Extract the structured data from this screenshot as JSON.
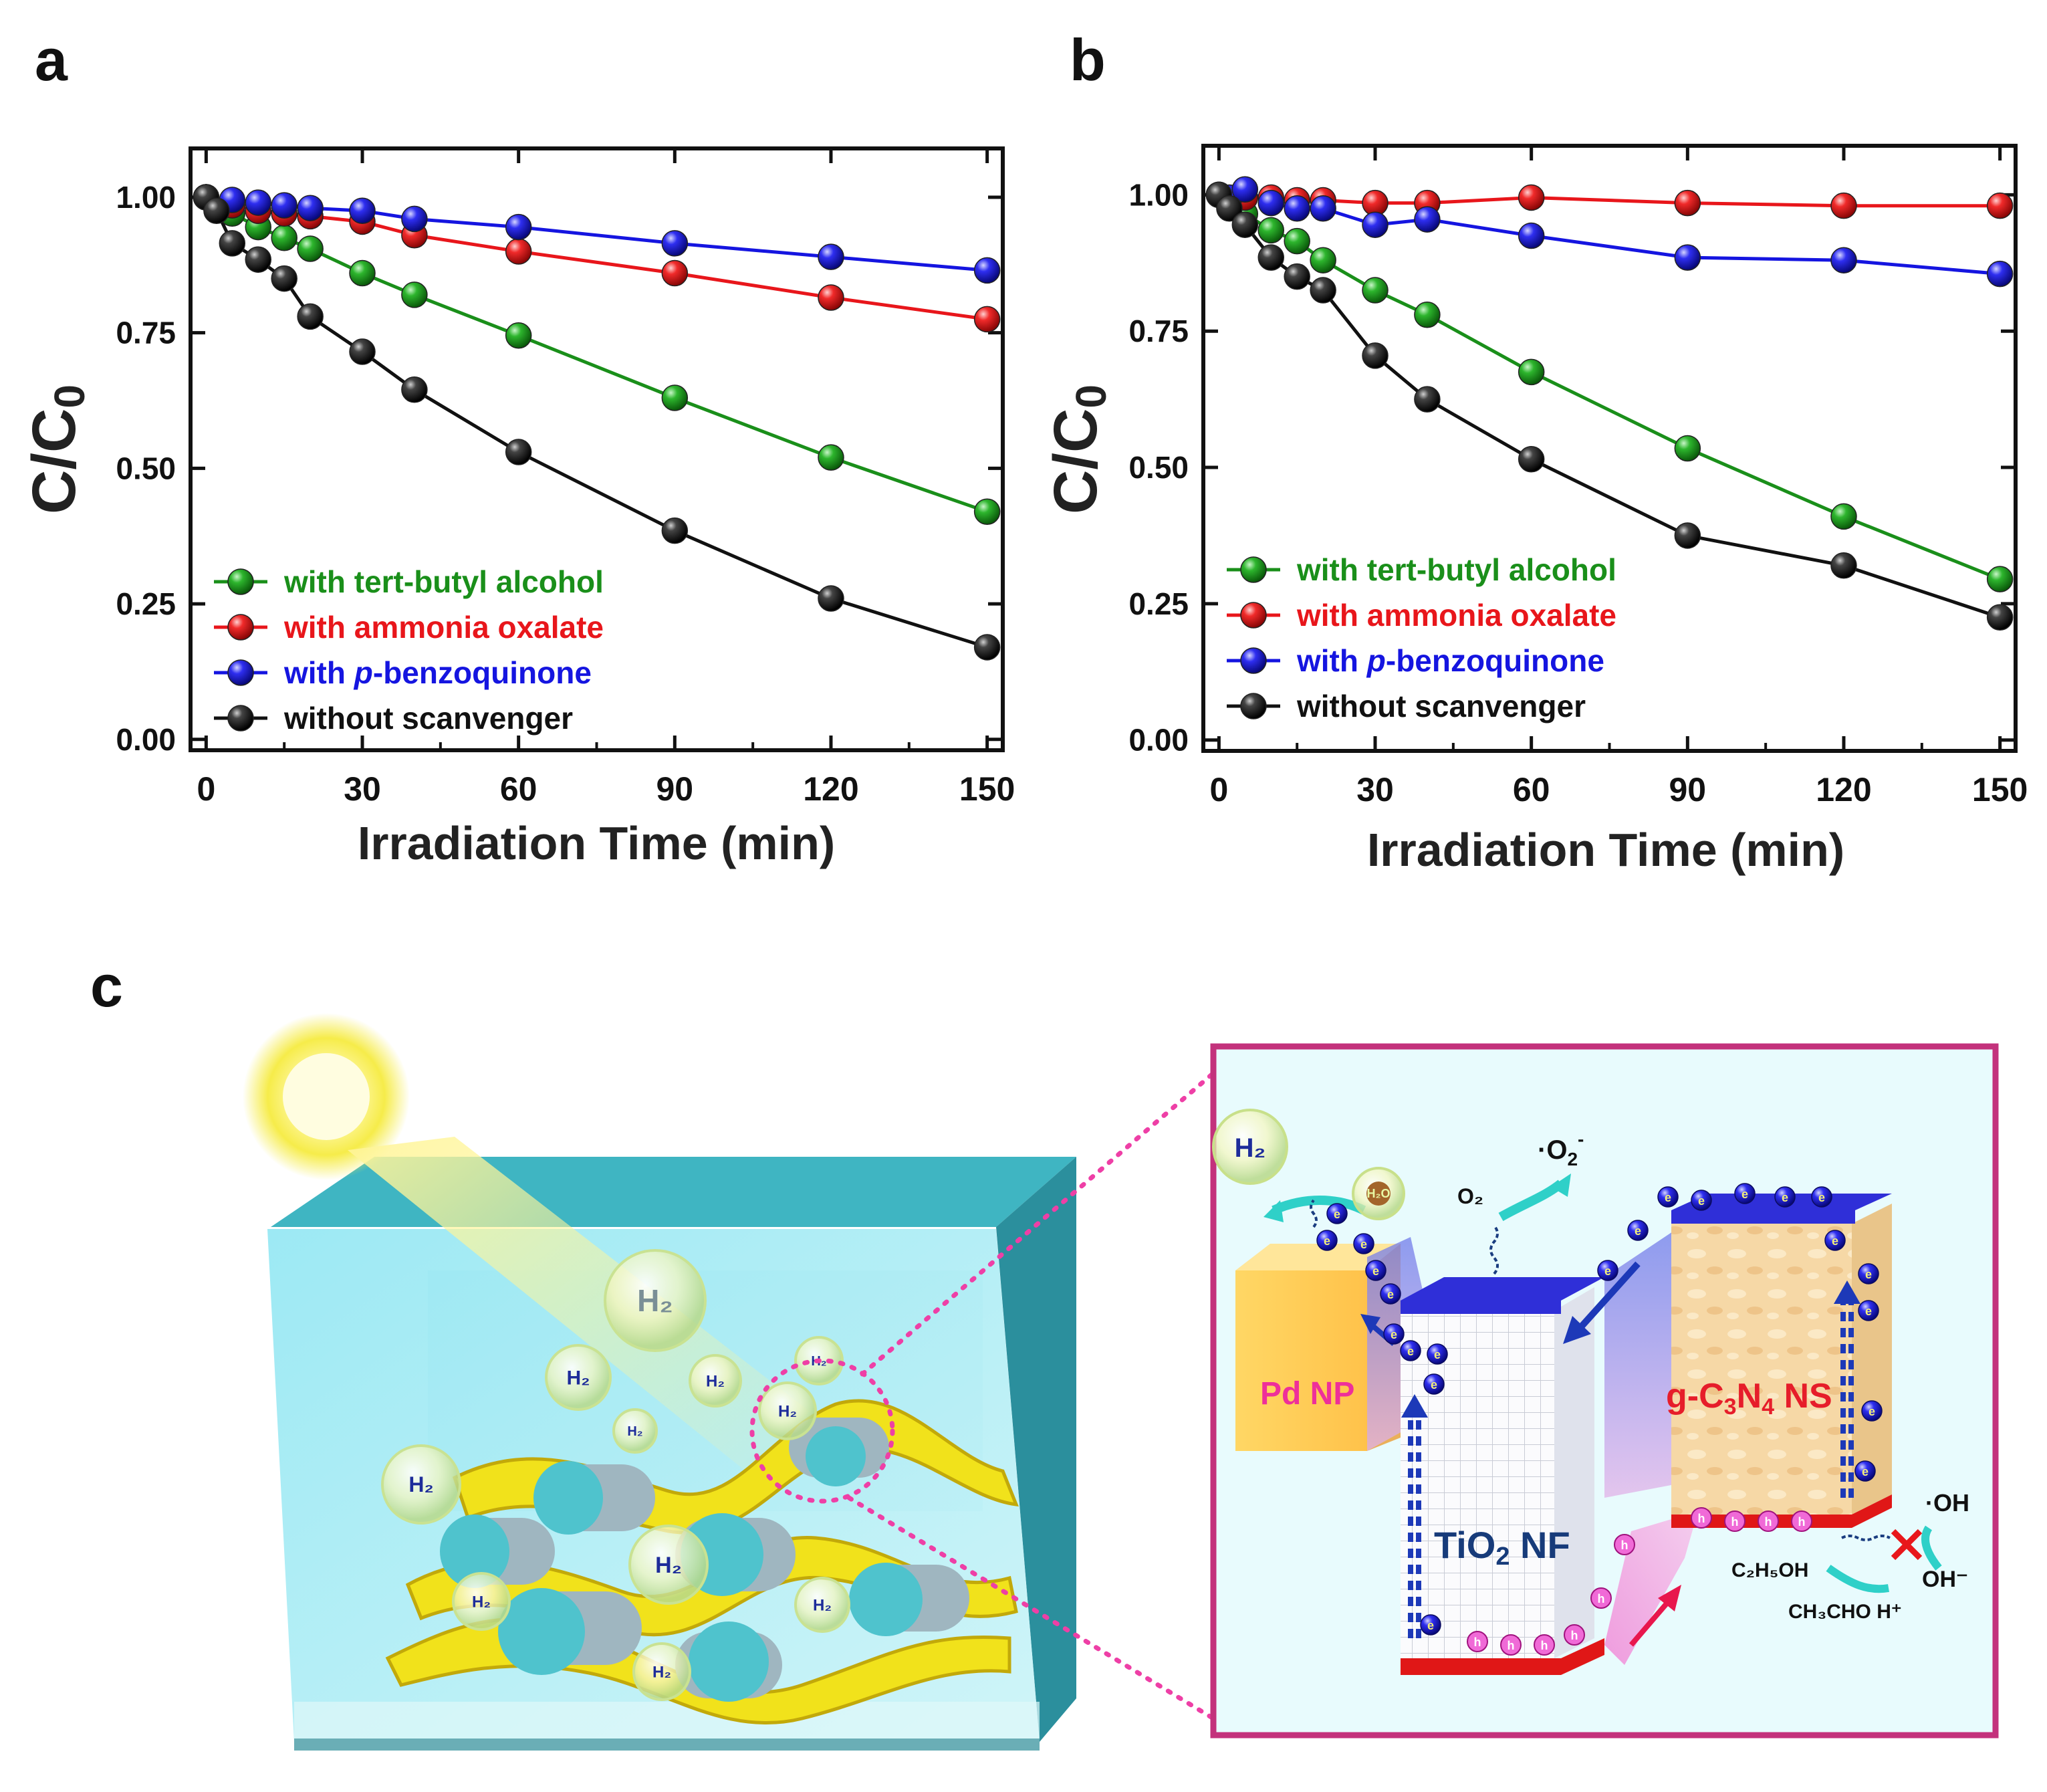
{
  "panels": {
    "a": "a",
    "b": "b",
    "c": "c"
  },
  "chart_data": [
    {
      "panel": "a",
      "type": "line",
      "xlabel": "Irradiation Time (min)",
      "ylabel_main": "C/C",
      "ylabel_sub": "0",
      "xlim": [
        -3,
        153
      ],
      "ylim": [
        -0.02,
        1.09
      ],
      "xticks": [
        0,
        30,
        60,
        90,
        120,
        150
      ],
      "xtick_labels": [
        "0",
        "30",
        "60",
        "90",
        "120",
        "150"
      ],
      "yticks": [
        0.0,
        0.25,
        0.5,
        0.75,
        1.0
      ],
      "ytick_labels": [
        "0.00",
        "0.25",
        "0.50",
        "0.75",
        "1.00"
      ],
      "legend_position": "bottom-left",
      "series": [
        {
          "key": "tba",
          "name": "with tert-butyl alcohol",
          "prefix": "with ",
          "italic": "",
          "suffix": "tert-butyl alcohol",
          "color": "#1a8f1a",
          "x": [
            0,
            5,
            10,
            15,
            20,
            30,
            40,
            60,
            90,
            120,
            150
          ],
          "y": [
            1.0,
            0.97,
            0.945,
            0.925,
            0.905,
            0.86,
            0.82,
            0.745,
            0.63,
            0.52,
            0.42
          ]
        },
        {
          "key": "ao",
          "name": "with ammonia oxalate",
          "prefix": "with ",
          "italic": "",
          "suffix": "ammonia oxalate",
          "color": "#e8161b",
          "x": [
            0,
            5,
            10,
            15,
            20,
            30,
            40,
            60,
            90,
            120,
            150
          ],
          "y": [
            1.0,
            0.985,
            0.975,
            0.97,
            0.965,
            0.955,
            0.93,
            0.9,
            0.86,
            0.815,
            0.775
          ]
        },
        {
          "key": "bq",
          "name": "with p-benzoquinone",
          "prefix": "with ",
          "italic": "p",
          "suffix": "-benzoquinone",
          "color": "#1515e0",
          "x": [
            0,
            5,
            10,
            15,
            20,
            30,
            40,
            60,
            90,
            120,
            150
          ],
          "y": [
            1.0,
            0.995,
            0.99,
            0.985,
            0.98,
            0.975,
            0.96,
            0.945,
            0.915,
            0.89,
            0.865
          ]
        },
        {
          "key": "none",
          "name": "without scanvenger",
          "prefix": "without scanvenger",
          "italic": "",
          "suffix": "",
          "color": "#111111",
          "x": [
            0,
            2,
            5,
            10,
            15,
            20,
            30,
            40,
            60,
            90,
            120,
            150
          ],
          "y": [
            1.0,
            0.975,
            0.915,
            0.885,
            0.85,
            0.78,
            0.715,
            0.645,
            0.53,
            0.385,
            0.26,
            0.17
          ]
        }
      ]
    },
    {
      "panel": "b",
      "type": "line",
      "xlabel": "Irradiation Time (min)",
      "ylabel_main": "C/C",
      "ylabel_sub": "0",
      "xlim": [
        -3,
        153
      ],
      "ylim": [
        -0.02,
        1.09
      ],
      "xticks": [
        0,
        30,
        60,
        90,
        120,
        150
      ],
      "xtick_labels": [
        "0",
        "30",
        "60",
        "90",
        "120",
        "150"
      ],
      "yticks": [
        0.0,
        0.25,
        0.5,
        0.75,
        1.0
      ],
      "ytick_labels": [
        "0.00",
        "0.25",
        "0.50",
        "0.75",
        "1.00"
      ],
      "legend_position": "bottom-left",
      "series": [
        {
          "key": "tba",
          "name": "with tert-butyl alcohol",
          "prefix": "with ",
          "italic": "",
          "suffix": "tert-butyl alcohol",
          "color": "#1a8f1a",
          "x": [
            0,
            5,
            10,
            15,
            20,
            30,
            40,
            60,
            90,
            120,
            150
          ],
          "y": [
            1.0,
            0.965,
            0.935,
            0.915,
            0.88,
            0.825,
            0.78,
            0.675,
            0.535,
            0.41,
            0.295
          ]
        },
        {
          "key": "ao",
          "name": "with ammonia oxalate",
          "prefix": "with ",
          "italic": "",
          "suffix": "ammonia oxalate",
          "color": "#e8161b",
          "x": [
            0,
            5,
            10,
            15,
            20,
            30,
            40,
            60,
            90,
            120,
            150
          ],
          "y": [
            1.0,
            0.995,
            0.995,
            0.99,
            0.99,
            0.985,
            0.985,
            0.995,
            0.985,
            0.98,
            0.98
          ]
        },
        {
          "key": "bq",
          "name": "with p-benzoquinone",
          "prefix": "with ",
          "italic": "",
          "italic2": "p",
          "suffix": "-benzoquinone",
          "color": "#1515e0",
          "x": [
            0,
            2,
            5,
            10,
            15,
            20,
            30,
            40,
            60,
            90,
            120,
            150
          ],
          "y": [
            1.0,
            0.995,
            1.01,
            0.985,
            0.975,
            0.975,
            0.945,
            0.955,
            0.925,
            0.885,
            0.88,
            0.855
          ]
        },
        {
          "key": "none",
          "name": "without scanvenger",
          "prefix": "without scanvenger",
          "italic": "",
          "suffix": "",
          "color": "#111111",
          "x": [
            0,
            2,
            5,
            10,
            15,
            20,
            30,
            40,
            60,
            90,
            120,
            150
          ],
          "y": [
            1.0,
            0.975,
            0.945,
            0.885,
            0.85,
            0.825,
            0.705,
            0.625,
            0.515,
            0.375,
            0.32,
            0.225
          ]
        }
      ]
    }
  ],
  "scheme": {
    "sun_label": "",
    "left_h2_labels": [
      "H₂",
      "H₂",
      "H₂",
      "H₂",
      "H₂",
      "H₂",
      "H₂",
      "H₂",
      "H₂",
      "H₂",
      "H₂"
    ],
    "h2_big": "H₂",
    "h2o": "H₂O",
    "o2": "O₂",
    "superoxide_main": "·O",
    "superoxide_sub": "2",
    "superoxide_sup": "-",
    "pd_np": "Pd NP",
    "tio2_main": "TiO",
    "tio2_sub": "2",
    "tio2_rest": " NF",
    "gcn_a": "g-C",
    "gcn_3": "3",
    "gcn_b": "N",
    "gcn_4": "4",
    "gcn_c": " NS",
    "oh_radical": "·OH",
    "oh_minus": "OH⁻",
    "ethanol": "C₂H₅OH",
    "acetaldehyde": "CH₃CHO H⁺",
    "electron": "e",
    "hole": "h"
  }
}
